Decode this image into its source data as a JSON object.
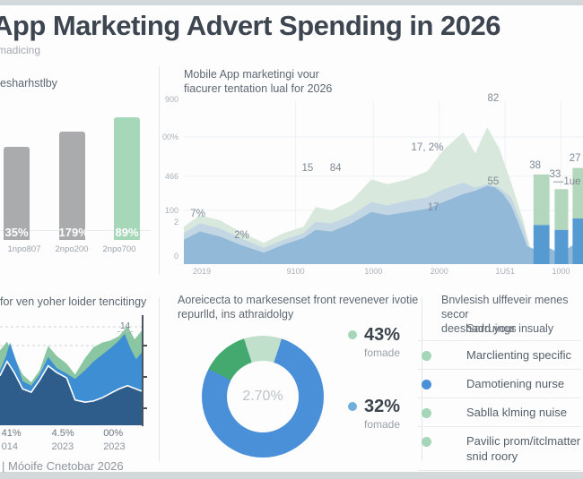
{
  "header": {
    "title": "App Marketing Advert Spending in 2026",
    "subtitle": "madicing"
  },
  "footer": {
    "text": "| Móoife Cnetobar 2026"
  },
  "colors": {
    "accent_green": "#a6d7b9",
    "accent_blue": "#4a90d9",
    "bar_gray": "#a9abad",
    "dark_text": "#3d4650",
    "muted_text": "#9aa3ab"
  },
  "chart_data": [
    {
      "id": "spend-bars",
      "type": "bar",
      "title": "esharhstlby",
      "categories": [
        "1npo807",
        "2npo200",
        "2npo700"
      ],
      "values": [
        71,
        83,
        94
      ],
      "data_labels": [
        "35%",
        "179%",
        "89%"
      ],
      "bar_colors": [
        "#a9abad",
        "#a9abad",
        "#a6d7b9"
      ],
      "ylim": [
        0,
        100
      ]
    },
    {
      "id": "mobile-area",
      "type": "area",
      "title_line1": "Mobile App marketingi vour",
      "title_line2": "fiacurer tentation lual for 2026",
      "bar_green": "#b2d7bc",
      "bar_blue": "#569ad2",
      "y_ticks": [
        {
          "label": "900",
          "y": -1
        },
        {
          "label": "00%",
          "y": 22
        },
        {
          "label": "466",
          "y": 46
        },
        {
          "label": "100",
          "y": 67
        },
        {
          "label": "2",
          "y": 74
        },
        {
          "label": "0",
          "y": 95
        }
      ],
      "x_ticks": [
        {
          "label": "2019",
          "x": 4.5
        },
        {
          "label": "9100",
          "x": 28
        },
        {
          "label": "1000",
          "x": 47.5
        },
        {
          "label": "2000",
          "x": 64
        },
        {
          "label": "1U51",
          "x": 80.5
        },
        {
          "label": "1000",
          "x": 94.5
        }
      ],
      "series": [
        {
          "name": "green-band",
          "color": "#d9e8dd",
          "points": [
            [
              0,
              23
            ],
            [
              4,
              30
            ],
            [
              9,
              27
            ],
            [
              14,
              20
            ],
            [
              20,
              13
            ],
            [
              25,
              19
            ],
            [
              30,
              23
            ],
            [
              33,
              35
            ],
            [
              37,
              33
            ],
            [
              42,
              39
            ],
            [
              47,
              52
            ],
            [
              51,
              49
            ],
            [
              56,
              52
            ],
            [
              61,
              57
            ],
            [
              65,
              70
            ],
            [
              70,
              81
            ],
            [
              73,
              68
            ],
            [
              76,
              84
            ],
            [
              79,
              71
            ],
            [
              82,
              50
            ],
            [
              85,
              27
            ],
            [
              87,
              8
            ],
            [
              87.5,
              0
            ]
          ]
        },
        {
          "name": "mid-band",
          "color": "#c3d6e4",
          "points": [
            [
              0,
              19
            ],
            [
              4,
              25
            ],
            [
              9,
              22
            ],
            [
              14,
              16
            ],
            [
              20,
              10
            ],
            [
              25,
              15
            ],
            [
              30,
              19
            ],
            [
              33,
              26
            ],
            [
              37,
              25
            ],
            [
              42,
              30
            ],
            [
              47,
              38
            ],
            [
              51,
              36
            ],
            [
              56,
              39
            ],
            [
              61,
              41
            ],
            [
              65,
              46
            ],
            [
              70,
              50
            ],
            [
              73,
              47
            ],
            [
              76,
              49
            ],
            [
              79,
              47
            ],
            [
              82,
              41
            ],
            [
              85,
              23
            ],
            [
              87,
              6
            ],
            [
              87.5,
              0
            ]
          ]
        },
        {
          "name": "front-band",
          "color": "#92b9d8",
          "points": [
            [
              0,
              15
            ],
            [
              4,
              20
            ],
            [
              9,
              17
            ],
            [
              14,
              12
            ],
            [
              20,
              7
            ],
            [
              25,
              12
            ],
            [
              30,
              16
            ],
            [
              33,
              21
            ],
            [
              37,
              20
            ],
            [
              42,
              25
            ],
            [
              47,
              32
            ],
            [
              51,
              30
            ],
            [
              56,
              32
            ],
            [
              61,
              34
            ],
            [
              65,
              38
            ],
            [
              70,
              43
            ],
            [
              73,
              45
            ],
            [
              76,
              48
            ],
            [
              78,
              47
            ],
            [
              80,
              43
            ],
            [
              82,
              36
            ],
            [
              84,
              24
            ],
            [
              86,
              11
            ],
            [
              88,
              9
            ],
            [
              90,
              12
            ],
            [
              93,
              8
            ],
            [
              95,
              7
            ],
            [
              97,
              11
            ],
            [
              100,
              14
            ]
          ]
        }
      ],
      "end_bars": [
        {
          "x": 87.6,
          "w": 4.0,
          "total": 55,
          "split": 24
        },
        {
          "x": 92.9,
          "w": 3.4,
          "total": 46,
          "split": 21
        },
        {
          "x": 97.4,
          "w": 2.6,
          "total": 59,
          "split": 28
        }
      ],
      "annotations": [
        {
          "text": "7%",
          "x": 3.5,
          "y": 66
        },
        {
          "text": "2%",
          "x": 14.5,
          "y": 79
        },
        {
          "text": "15",
          "x": 31,
          "y": 38
        },
        {
          "text": "84",
          "x": 38,
          "y": 38
        },
        {
          "text": "17, 2%",
          "x": 61,
          "y": 25
        },
        {
          "text": "17",
          "x": 62.5,
          "y": 62
        },
        {
          "text": "82",
          "x": 77.5,
          "y": -5
        },
        {
          "text": "55",
          "x": 77.5,
          "y": 46
        },
        {
          "text": "38",
          "x": 88,
          "y": 36
        },
        {
          "text": "33",
          "x": 93,
          "y": 42
        },
        {
          "text": "—1ue",
          "x": 96,
          "y": 46
        },
        {
          "text": "27",
          "x": 98,
          "y": 32
        }
      ]
    },
    {
      "id": "trend-area",
      "type": "area",
      "title": "for ven yoher loider tencitingy",
      "top_label": "14",
      "series": [
        {
          "name": "green-layer",
          "color": "#8bc6a2",
          "points": [
            [
              0,
              68
            ],
            [
              5,
              76
            ],
            [
              10,
              62
            ],
            [
              16,
              46
            ],
            [
              22,
              39
            ],
            [
              28,
              50
            ],
            [
              34,
              72
            ],
            [
              40,
              63
            ],
            [
              47,
              56
            ],
            [
              53,
              46
            ],
            [
              60,
              61
            ],
            [
              66,
              71
            ],
            [
              72,
              75
            ],
            [
              78,
              77
            ],
            [
              84,
              81
            ],
            [
              90,
              90
            ],
            [
              95,
              78
            ],
            [
              100,
              86
            ]
          ]
        },
        {
          "name": "bright-blue-layer",
          "color": "#3e8ed3",
          "points": [
            [
              0,
              50
            ],
            [
              4,
              62
            ],
            [
              7,
              75
            ],
            [
              12,
              56
            ],
            [
              16,
              40
            ],
            [
              22,
              36
            ],
            [
              28,
              46
            ],
            [
              34,
              62
            ],
            [
              40,
              52
            ],
            [
              47,
              47
            ],
            [
              53,
              42
            ],
            [
              60,
              50
            ],
            [
              66,
              58
            ],
            [
              72,
              64
            ],
            [
              78,
              70
            ],
            [
              84,
              77
            ],
            [
              88,
              83
            ],
            [
              92,
              70
            ],
            [
              96,
              60
            ],
            [
              100,
              66
            ]
          ]
        },
        {
          "name": "dark-blue-layer",
          "color": "#2e5d8c",
          "points": [
            [
              0,
              45
            ],
            [
              5,
              58
            ],
            [
              10,
              48
            ],
            [
              16,
              33
            ],
            [
              22,
              30
            ],
            [
              28,
              41
            ],
            [
              34,
              54
            ],
            [
              40,
              48
            ],
            [
              47,
              43
            ],
            [
              53,
              23
            ],
            [
              60,
              21
            ],
            [
              66,
              22
            ],
            [
              72,
              25
            ],
            [
              78,
              29
            ],
            [
              84,
              33
            ],
            [
              90,
              36
            ],
            [
              100,
              31
            ]
          ]
        }
      ],
      "x_ticks": [
        {
          "pct": "41%",
          "year": "014",
          "x": 1
        },
        {
          "pct": "4.5%",
          "year": "2023",
          "x": 36
        },
        {
          "pct": "00%",
          "year": "2023",
          "x": 72
        }
      ]
    },
    {
      "id": "share-donut",
      "type": "pie",
      "title_line1": "Aoreicecta to markesenset front revenever ivotie",
      "title_line2": "repurlld, ins athraidolgy",
      "center_label": "2.70%",
      "slices": [
        {
          "name": "light-green",
          "color": "#c0e0cb",
          "from": 0,
          "to": 18
        },
        {
          "name": "blue",
          "color": "#4a90d9",
          "from": 18,
          "to": 297
        },
        {
          "name": "green",
          "color": "#44a96e",
          "from": 297,
          "to": 342
        },
        {
          "name": "light-green",
          "color": "#c0e0cb",
          "from": 342,
          "to": 360
        }
      ],
      "legend": [
        {
          "dot": "#a5d6b8",
          "value": 43,
          "display": "43%",
          "label": "fomade"
        },
        {
          "dot": "#70aede",
          "value": 32,
          "display": "32%",
          "label": "fomade"
        }
      ]
    },
    {
      "id": "category-list",
      "type": "table",
      "title_line1": "Bnvlesish ulffeveir menes secor",
      "title_line2": "deeshadd your insualy",
      "subheading": "Sarruings",
      "items": [
        {
          "dot": "#a5d6b8",
          "lines": [
            "Marclienting specific"
          ]
        },
        {
          "dot": "#4a90d9",
          "lines": [
            "Damotiening nurse"
          ]
        },
        {
          "dot": "#a5d6b8",
          "lines": [
            "Sablla klming nuise"
          ]
        },
        {
          "dot": "#a5d6b8",
          "lines": [
            "Pavilic prom/itclmatter",
            "snid roory"
          ]
        }
      ]
    }
  ]
}
